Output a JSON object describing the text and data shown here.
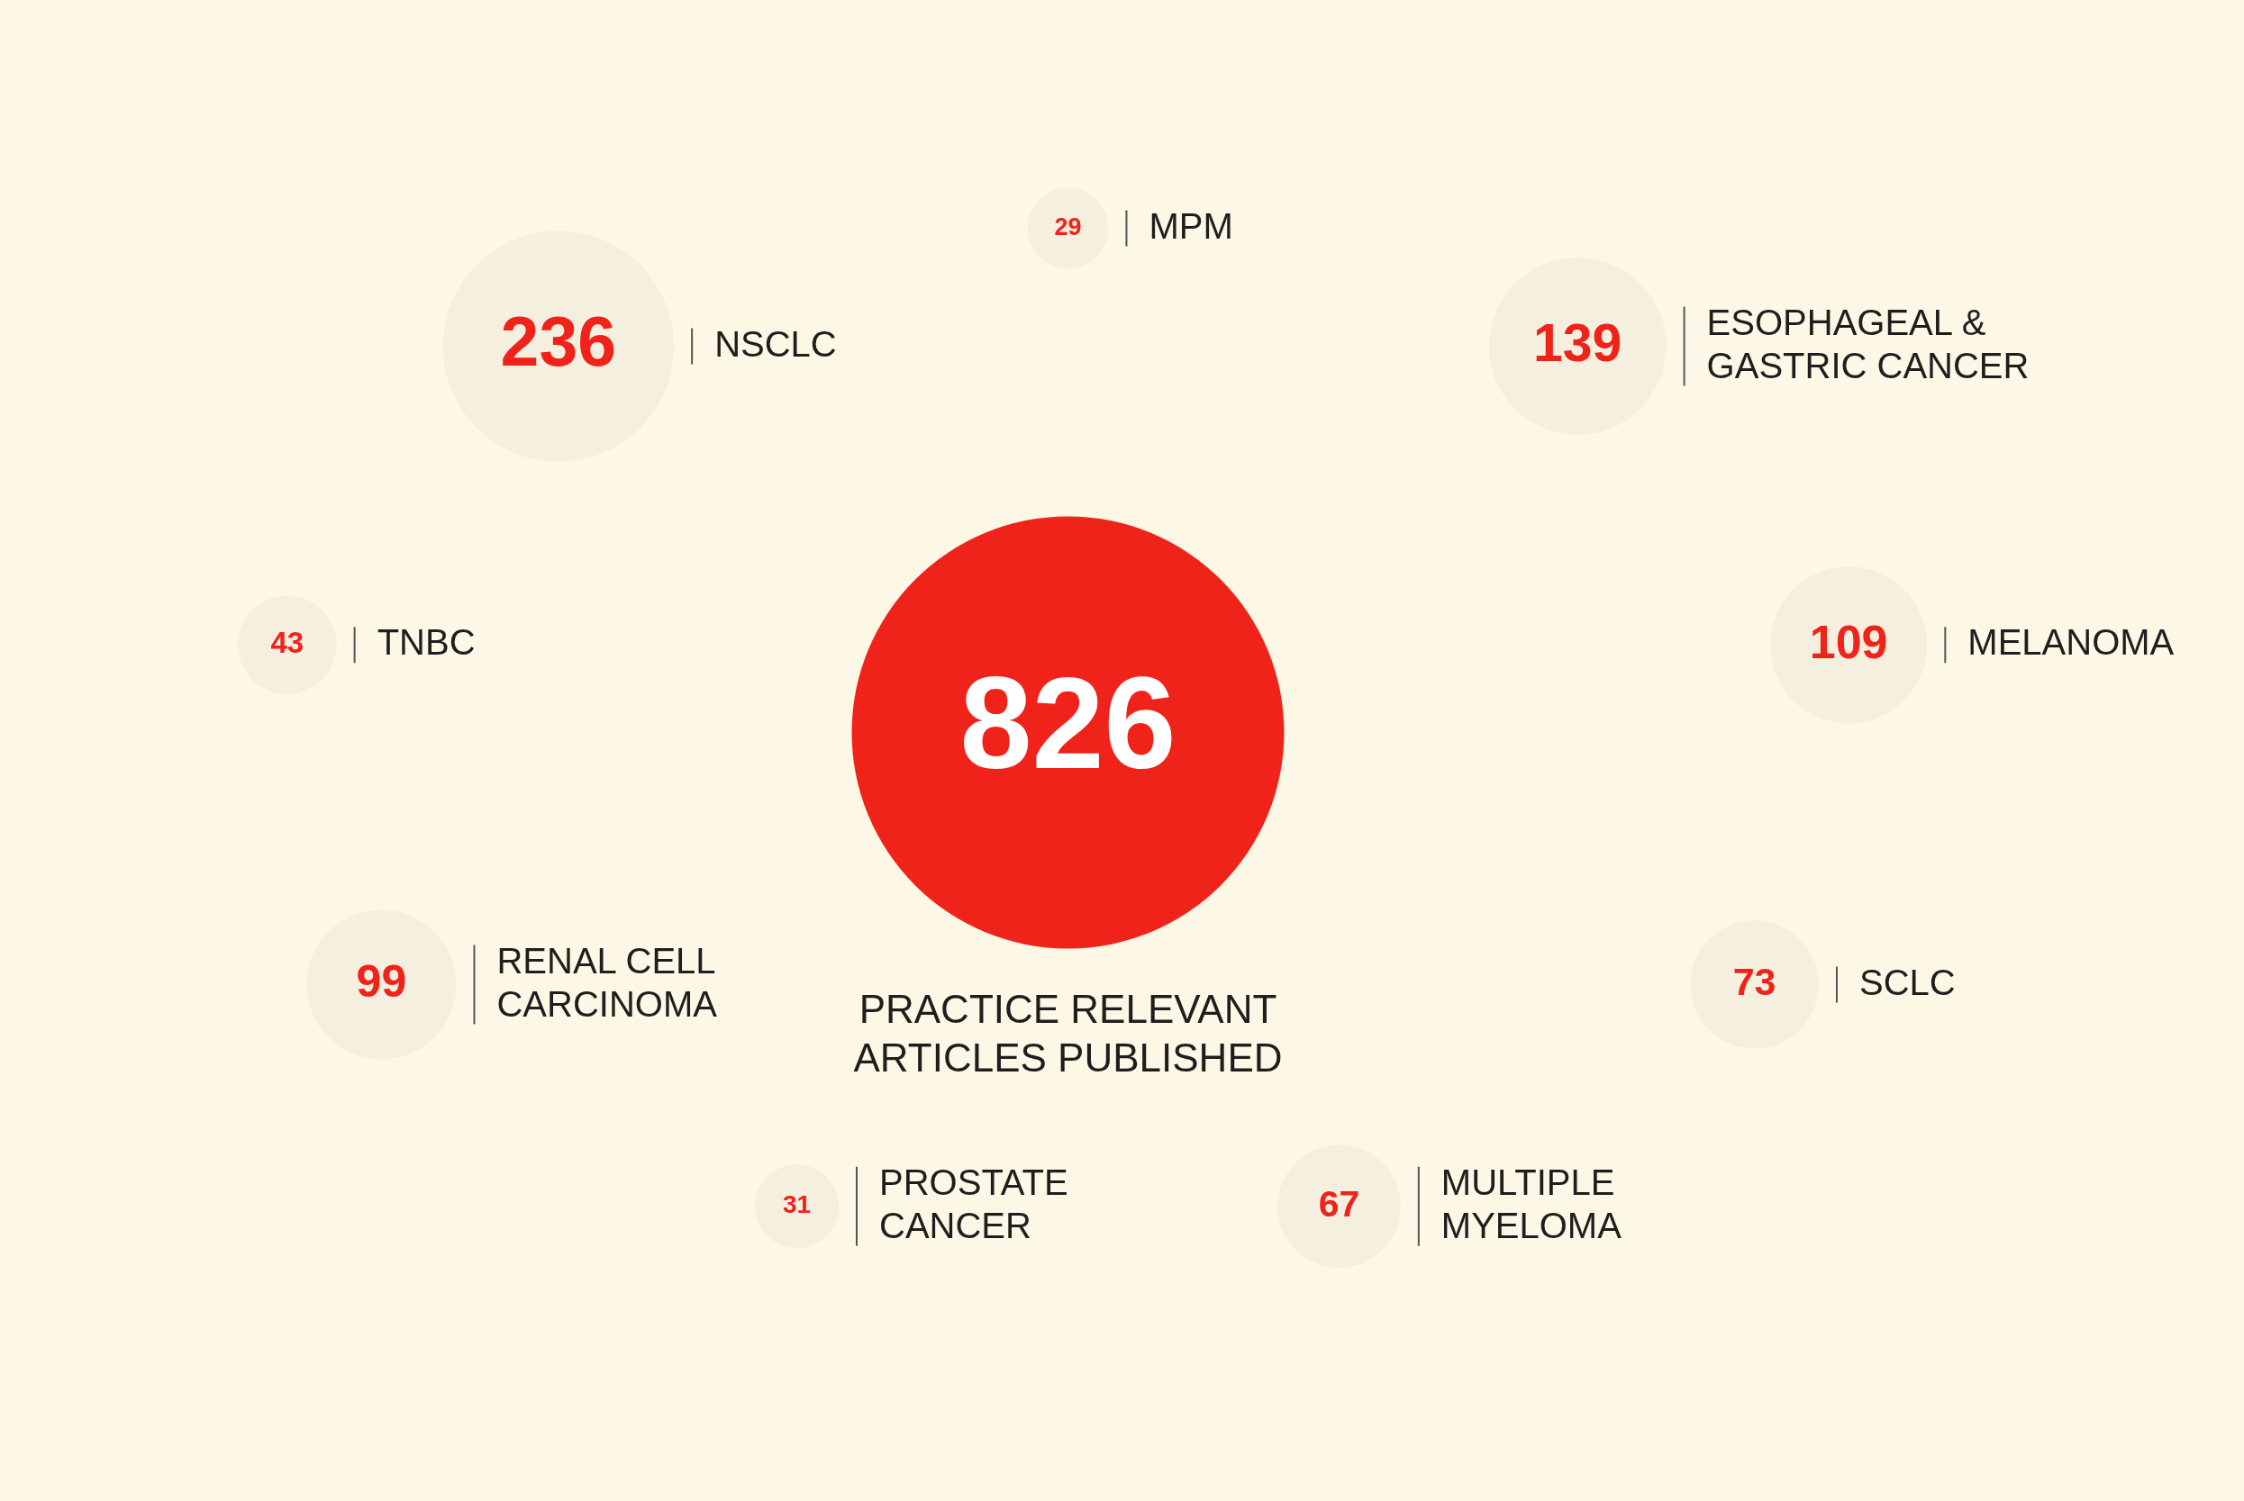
{
  "chart_data": {
    "type": "other",
    "categories": [
      "PRACTICE RELEVANT ARTICLES PUBLISHED",
      "ESOPHAGEAL & GASTRIC CANCER",
      "MELANOMA",
      "SCLC",
      "MULTIPLE MYELOMA",
      "PROSTATE CANCER",
      "RENAL CELL CARCINOMA",
      "TNBC",
      "NSCLC",
      "MPM"
    ],
    "values": [
      826,
      139,
      109,
      73,
      67,
      31,
      99,
      43,
      236,
      29
    ],
    "colors": [
      "#f0231a",
      "#f5efdf",
      "#f5efdf",
      "#f5efdf",
      "#f5efdf",
      "#f5efdf",
      "#f5efdf",
      "#f5efdf",
      "#f5efdf",
      "#f5efdf"
    ],
    "data_labels": true
  }
}
